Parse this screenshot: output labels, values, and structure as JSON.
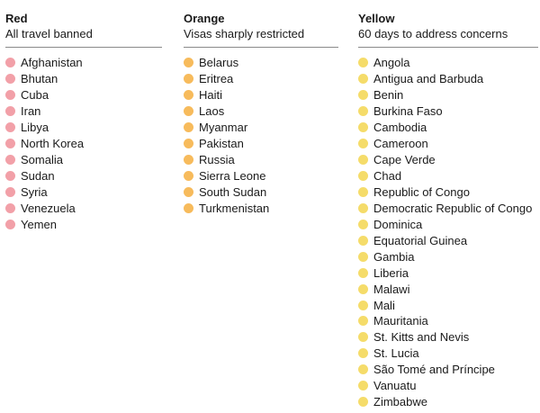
{
  "colors": {
    "red": "#f2a0a8",
    "orange": "#f7bb5c",
    "yellow": "#f5dc6a"
  },
  "columns": [
    {
      "key": "red",
      "title": "Red",
      "subtitle": "All travel banned",
      "countries": [
        "Afghanistan",
        "Bhutan",
        "Cuba",
        "Iran",
        "Libya",
        "North Korea",
        "Somalia",
        "Sudan",
        "Syria",
        "Venezuela",
        "Yemen"
      ]
    },
    {
      "key": "orange",
      "title": "Orange",
      "subtitle": "Visas sharply restricted",
      "countries": [
        "Belarus",
        "Eritrea",
        "Haiti",
        "Laos",
        "Myanmar",
        "Pakistan",
        "Russia",
        "Sierra Leone",
        "South Sudan",
        "Turkmenistan"
      ]
    },
    {
      "key": "yellow",
      "title": "Yellow",
      "subtitle": "60 days to address concerns",
      "countries": [
        "Angola",
        "Antigua and Barbuda",
        "Benin",
        "Burkina Faso",
        "Cambodia",
        "Cameroon",
        "Cape Verde",
        "Chad",
        "Republic of Congo",
        "Democratic Republic of Congo",
        "Dominica",
        "Equatorial Guinea",
        "Gambia",
        "Liberia",
        "Malawi",
        "Mali",
        "Mauritania",
        "St. Kitts and Nevis",
        "St. Lucia",
        "São Tomé and Príncipe",
        "Vanuatu",
        "Zimbabwe"
      ]
    }
  ]
}
